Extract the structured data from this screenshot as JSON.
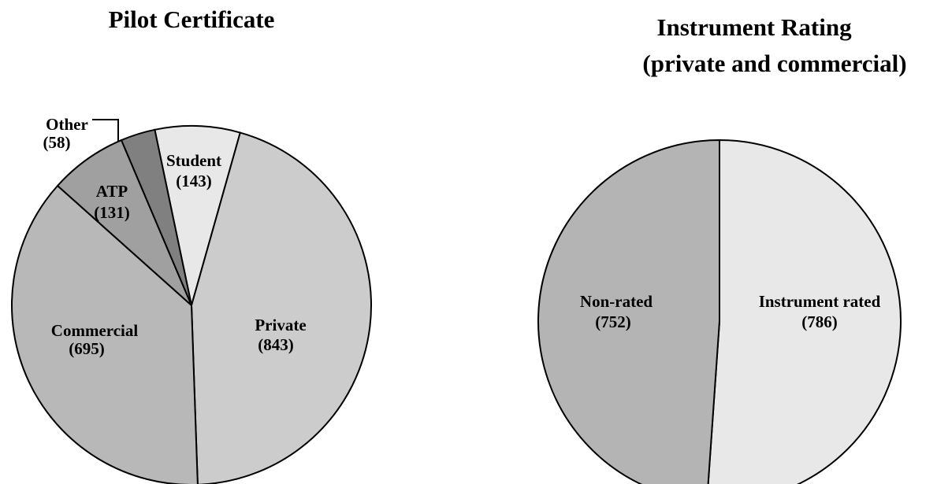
{
  "chart_data": [
    {
      "type": "pie",
      "title": "Pilot Certificate",
      "categories": [
        "Student",
        "Private",
        "Commercial",
        "ATP",
        "Other"
      ],
      "values": [
        143,
        843,
        695,
        131,
        58
      ],
      "value_labels": [
        "(143)",
        "(843)",
        "(695)",
        "(131)",
        "(58)"
      ],
      "colors": [
        "#e8e8e8",
        "#cccccc",
        "#b8b8b8",
        "#a0a0a0",
        "#808080"
      ]
    },
    {
      "type": "pie",
      "title": "Instrument Rating",
      "subtitle": "(private and commercial)",
      "categories": [
        "Instrument rated",
        "Non-rated"
      ],
      "values": [
        786,
        752
      ],
      "value_labels": [
        "(786)",
        "(752)"
      ],
      "colors": [
        "#e8e8e8",
        "#b4b4b4"
      ]
    }
  ]
}
